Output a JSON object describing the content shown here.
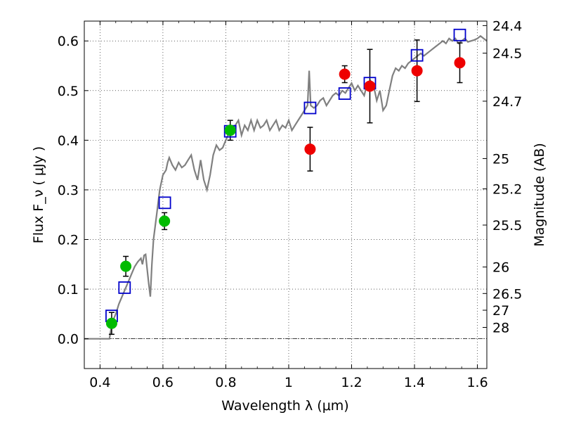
{
  "chart_data": {
    "type": "scatter",
    "xlabel": "Wavelength  λ (μm)",
    "ylabel_left": "Flux  F_ν ( μJy )",
    "ylabel_right": "Magnitude (AB)",
    "xlim": [
      0.35,
      1.63
    ],
    "ylim": [
      -0.06,
      0.64
    ],
    "grid": true,
    "x_ticks": [
      {
        "value": 0.4,
        "label": "0.4"
      },
      {
        "value": 0.6,
        "label": "0.6"
      },
      {
        "value": 0.8,
        "label": "0.8"
      },
      {
        "value": 1.0,
        "label": "1"
      },
      {
        "value": 1.2,
        "label": "1.2"
      },
      {
        "value": 1.4,
        "label": "1.4"
      },
      {
        "value": 1.6,
        "label": "1.6"
      }
    ],
    "y_ticks": [
      {
        "value": 0.0,
        "label": "0.0"
      },
      {
        "value": 0.1,
        "label": "0.1"
      },
      {
        "value": 0.2,
        "label": "0.2"
      },
      {
        "value": 0.3,
        "label": "0.3"
      },
      {
        "value": 0.4,
        "label": "0.4"
      },
      {
        "value": 0.5,
        "label": "0.5"
      },
      {
        "value": 0.6,
        "label": "0.6"
      }
    ],
    "mag_ticks": [
      {
        "mag": 24.4,
        "label": "24.4"
      },
      {
        "mag": 24.5,
        "label": "24.5"
      },
      {
        "mag": 24.7,
        "label": "24.7"
      },
      {
        "mag": 25.0,
        "label": "25"
      },
      {
        "mag": 25.2,
        "label": "25.2"
      },
      {
        "mag": 25.5,
        "label": "25.5"
      },
      {
        "mag": 26.0,
        "label": "26"
      },
      {
        "mag": 26.5,
        "label": "26.5"
      },
      {
        "mag": 27.0,
        "label": "27"
      },
      {
        "mag": 28.0,
        "label": "28"
      }
    ],
    "series": [
      {
        "name": "model_spectrum",
        "kind": "line",
        "color": "#808080",
        "points": [
          [
            0.35,
            0.0
          ],
          [
            0.43,
            0.0
          ],
          [
            0.435,
            0.02
          ],
          [
            0.44,
            0.035
          ],
          [
            0.45,
            0.05
          ],
          [
            0.46,
            0.07
          ],
          [
            0.47,
            0.085
          ],
          [
            0.48,
            0.1
          ],
          [
            0.49,
            0.115
          ],
          [
            0.5,
            0.13
          ],
          [
            0.51,
            0.145
          ],
          [
            0.52,
            0.155
          ],
          [
            0.53,
            0.162
          ],
          [
            0.535,
            0.15
          ],
          [
            0.54,
            0.168
          ],
          [
            0.545,
            0.17
          ],
          [
            0.55,
            0.14
          ],
          [
            0.555,
            0.11
          ],
          [
            0.56,
            0.085
          ],
          [
            0.565,
            0.15
          ],
          [
            0.57,
            0.2
          ],
          [
            0.58,
            0.25
          ],
          [
            0.59,
            0.3
          ],
          [
            0.6,
            0.33
          ],
          [
            0.61,
            0.34
          ],
          [
            0.615,
            0.355
          ],
          [
            0.62,
            0.365
          ],
          [
            0.63,
            0.35
          ],
          [
            0.64,
            0.34
          ],
          [
            0.65,
            0.355
          ],
          [
            0.66,
            0.345
          ],
          [
            0.67,
            0.35
          ],
          [
            0.68,
            0.36
          ],
          [
            0.69,
            0.37
          ],
          [
            0.7,
            0.34
          ],
          [
            0.71,
            0.32
          ],
          [
            0.72,
            0.36
          ],
          [
            0.73,
            0.32
          ],
          [
            0.74,
            0.3
          ],
          [
            0.75,
            0.33
          ],
          [
            0.76,
            0.37
          ],
          [
            0.77,
            0.39
          ],
          [
            0.78,
            0.38
          ],
          [
            0.79,
            0.385
          ],
          [
            0.8,
            0.4
          ],
          [
            0.81,
            0.415
          ],
          [
            0.82,
            0.42
          ],
          [
            0.83,
            0.43
          ],
          [
            0.84,
            0.44
          ],
          [
            0.85,
            0.41
          ],
          [
            0.86,
            0.43
          ],
          [
            0.87,
            0.42
          ],
          [
            0.88,
            0.44
          ],
          [
            0.89,
            0.42
          ],
          [
            0.9,
            0.44
          ],
          [
            0.91,
            0.425
          ],
          [
            0.92,
            0.43
          ],
          [
            0.93,
            0.44
          ],
          [
            0.94,
            0.42
          ],
          [
            0.95,
            0.43
          ],
          [
            0.96,
            0.44
          ],
          [
            0.97,
            0.42
          ],
          [
            0.98,
            0.43
          ],
          [
            0.99,
            0.425
          ],
          [
            1.0,
            0.44
          ],
          [
            1.01,
            0.42
          ],
          [
            1.02,
            0.43
          ],
          [
            1.03,
            0.44
          ],
          [
            1.04,
            0.45
          ],
          [
            1.05,
            0.46
          ],
          [
            1.06,
            0.47
          ],
          [
            1.065,
            0.54
          ],
          [
            1.07,
            0.47
          ],
          [
            1.08,
            0.465
          ],
          [
            1.09,
            0.47
          ],
          [
            1.1,
            0.48
          ],
          [
            1.11,
            0.485
          ],
          [
            1.12,
            0.47
          ],
          [
            1.13,
            0.48
          ],
          [
            1.14,
            0.49
          ],
          [
            1.15,
            0.495
          ],
          [
            1.16,
            0.49
          ],
          [
            1.17,
            0.5
          ],
          [
            1.18,
            0.495
          ],
          [
            1.19,
            0.505
          ],
          [
            1.2,
            0.515
          ],
          [
            1.21,
            0.5
          ],
          [
            1.22,
            0.51
          ],
          [
            1.23,
            0.5
          ],
          [
            1.24,
            0.49
          ],
          [
            1.25,
            0.515
          ],
          [
            1.26,
            0.52
          ],
          [
            1.27,
            0.51
          ],
          [
            1.28,
            0.48
          ],
          [
            1.29,
            0.5
          ],
          [
            1.3,
            0.46
          ],
          [
            1.31,
            0.47
          ],
          [
            1.32,
            0.5
          ],
          [
            1.33,
            0.53
          ],
          [
            1.34,
            0.545
          ],
          [
            1.35,
            0.54
          ],
          [
            1.36,
            0.55
          ],
          [
            1.37,
            0.545
          ],
          [
            1.38,
            0.555
          ],
          [
            1.39,
            0.56
          ],
          [
            1.4,
            0.565
          ],
          [
            1.41,
            0.57
          ],
          [
            1.42,
            0.575
          ],
          [
            1.43,
            0.57
          ],
          [
            1.44,
            0.575
          ],
          [
            1.45,
            0.58
          ],
          [
            1.46,
            0.585
          ],
          [
            1.47,
            0.59
          ],
          [
            1.48,
            0.595
          ],
          [
            1.49,
            0.6
          ],
          [
            1.5,
            0.595
          ],
          [
            1.51,
            0.605
          ],
          [
            1.52,
            0.6
          ],
          [
            1.53,
            0.605
          ],
          [
            1.54,
            0.595
          ],
          [
            1.55,
            0.6
          ],
          [
            1.56,
            0.605
          ],
          [
            1.57,
            0.598
          ],
          [
            1.58,
            0.6
          ],
          [
            1.59,
            0.602
          ],
          [
            1.6,
            0.605
          ],
          [
            1.61,
            0.61
          ],
          [
            1.62,
            0.605
          ],
          [
            1.63,
            0.6
          ]
        ]
      },
      {
        "name": "model_photometry",
        "kind": "open_square",
        "color": "#0000cc",
        "points": [
          [
            0.437,
            0.046
          ],
          [
            0.478,
            0.103
          ],
          [
            0.606,
            0.274
          ],
          [
            0.814,
            0.418
          ],
          [
            1.068,
            0.465
          ],
          [
            1.178,
            0.494
          ],
          [
            1.258,
            0.515
          ],
          [
            1.408,
            0.571
          ],
          [
            1.544,
            0.612
          ]
        ]
      },
      {
        "name": "ground_photometry",
        "kind": "filled_circle",
        "color": "#00bb00",
        "points": [
          {
            "x": 0.437,
            "y": 0.031,
            "err": 0.022
          },
          {
            "x": 0.482,
            "y": 0.146,
            "err": 0.02
          },
          {
            "x": 0.605,
            "y": 0.237,
            "err": 0.017
          },
          {
            "x": 0.814,
            "y": 0.42,
            "err": 0.02
          }
        ]
      },
      {
        "name": "space_photometry",
        "kind": "filled_circle",
        "color": "#ee0000",
        "points": [
          {
            "x": 1.068,
            "y": 0.382,
            "err": 0.044
          },
          {
            "x": 1.178,
            "y": 0.533,
            "err": 0.017
          },
          {
            "x": 1.258,
            "y": 0.509,
            "err": 0.074
          },
          {
            "x": 1.408,
            "y": 0.54,
            "err": 0.062
          },
          {
            "x": 1.544,
            "y": 0.556,
            "err": 0.04
          }
        ]
      }
    ]
  }
}
